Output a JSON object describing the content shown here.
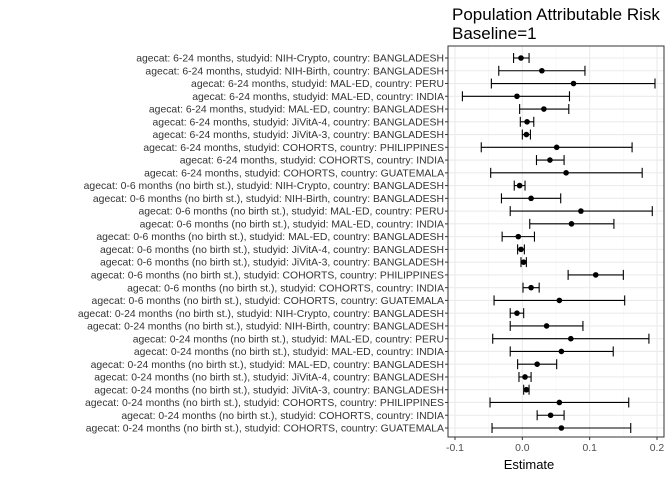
{
  "chart_data": {
    "type": "forest",
    "title": "Population Attributable Risk",
    "subtitle": "Baseline=1",
    "xlabel": "Estimate",
    "ylabel": "",
    "xlim": [
      -0.1,
      0.2
    ],
    "xticks": [
      -0.1,
      0.0,
      0.1,
      0.2
    ],
    "xtick_labels": [
      "-0.1",
      "0.0",
      "0.1",
      "0.2"
    ],
    "grid": true,
    "legend": "none",
    "rows": [
      {
        "label": "agecat: 6-24 months, studyid: NIH-Crypto, country: BANGLADESH",
        "est": -0.002,
        "lo": -0.013,
        "hi": 0.01
      },
      {
        "label": "agecat: 6-24 months, studyid: NIH-Birth, country: BANGLADESH",
        "est": 0.029,
        "lo": -0.035,
        "hi": 0.093
      },
      {
        "label": "agecat: 6-24 months, studyid: MAL-ED, country: PERU",
        "est": 0.076,
        "lo": -0.046,
        "hi": 0.197
      },
      {
        "label": "agecat: 6-24 months, studyid: MAL-ED, country: INDIA",
        "est": -0.008,
        "lo": -0.089,
        "hi": 0.07
      },
      {
        "label": "agecat: 6-24 months, studyid: MAL-ED, country: BANGLADESH",
        "est": 0.032,
        "lo": -0.004,
        "hi": 0.069
      },
      {
        "label": "agecat: 6-24 months, studyid: JiVitA-4, country: BANGLADESH",
        "est": 0.007,
        "lo": -0.003,
        "hi": 0.017
      },
      {
        "label": "agecat: 6-24 months, studyid: JiVitA-3, country: BANGLADESH",
        "est": 0.006,
        "lo": 0.0,
        "hi": 0.012
      },
      {
        "label": "agecat: 6-24 months, studyid: COHORTS, country: PHILIPPINES",
        "est": 0.051,
        "lo": -0.061,
        "hi": 0.163
      },
      {
        "label": "agecat: 6-24 months, studyid: COHORTS, country: INDIA",
        "est": 0.041,
        "lo": 0.021,
        "hi": 0.062
      },
      {
        "label": "agecat: 6-24 months, studyid: COHORTS, country: GUATEMALA",
        "est": 0.065,
        "lo": -0.047,
        "hi": 0.178
      },
      {
        "label": "agecat: 0-6 months (no birth st.), studyid: NIH-Crypto, country: BANGLADESH",
        "est": -0.004,
        "lo": -0.012,
        "hi": 0.004
      },
      {
        "label": "agecat: 0-6 months (no birth st.), studyid: NIH-Birth, country: BANGLADESH",
        "est": 0.013,
        "lo": -0.031,
        "hi": 0.057
      },
      {
        "label": "agecat: 0-6 months (no birth st.), studyid: MAL-ED, country: PERU",
        "est": 0.087,
        "lo": -0.018,
        "hi": 0.193
      },
      {
        "label": "agecat: 0-6 months (no birth st.), studyid: MAL-ED, country: INDIA",
        "est": 0.073,
        "lo": 0.011,
        "hi": 0.136
      },
      {
        "label": "agecat: 0-6 months (no birth st.), studyid: MAL-ED, country: BANGLADESH",
        "est": -0.006,
        "lo": -0.03,
        "hi": 0.018
      },
      {
        "label": "agecat: 0-6 months (no birth st.), studyid: JiVitA-4, country: BANGLADESH",
        "est": -0.002,
        "lo": -0.007,
        "hi": 0.003
      },
      {
        "label": "agecat: 0-6 months (no birth st.), studyid: JiVitA-3, country: BANGLADESH",
        "est": 0.002,
        "lo": -0.002,
        "hi": 0.006
      },
      {
        "label": "agecat: 0-6 months (no birth st.), studyid: COHORTS, country: PHILIPPINES",
        "est": 0.109,
        "lo": 0.068,
        "hi": 0.15
      },
      {
        "label": "agecat: 0-6 months (no birth st.), studyid: COHORTS, country: INDIA",
        "est": 0.013,
        "lo": 0.001,
        "hi": 0.025
      },
      {
        "label": "agecat: 0-6 months (no birth st.), studyid: COHORTS, country: GUATEMALA",
        "est": 0.055,
        "lo": -0.042,
        "hi": 0.152
      },
      {
        "label": "agecat: 0-24 months (no birth st.), studyid: NIH-Crypto, country: BANGLADESH",
        "est": -0.008,
        "lo": -0.018,
        "hi": 0.002
      },
      {
        "label": "agecat: 0-24 months (no birth st.), studyid: NIH-Birth, country: BANGLADESH",
        "est": 0.036,
        "lo": -0.018,
        "hi": 0.09
      },
      {
        "label": "agecat: 0-24 months (no birth st.), studyid: MAL-ED, country: PERU",
        "est": 0.072,
        "lo": -0.044,
        "hi": 0.188
      },
      {
        "label": "agecat: 0-24 months (no birth st.), studyid: MAL-ED, country: INDIA",
        "est": 0.058,
        "lo": -0.018,
        "hi": 0.135
      },
      {
        "label": "agecat: 0-24 months (no birth st.), studyid: MAL-ED, country: BANGLADESH",
        "est": 0.022,
        "lo": -0.007,
        "hi": 0.051
      },
      {
        "label": "agecat: 0-24 months (no birth st.), studyid: JiVitA-4, country: BANGLADESH",
        "est": 0.004,
        "lo": -0.005,
        "hi": 0.013
      },
      {
        "label": "agecat: 0-24 months (no birth st.), studyid: JiVitA-3, country: BANGLADESH",
        "est": 0.006,
        "lo": 0.002,
        "hi": 0.01
      },
      {
        "label": "agecat: 0-24 months (no birth st.), studyid: COHORTS, country: PHILIPPINES",
        "est": 0.055,
        "lo": -0.048,
        "hi": 0.158
      },
      {
        "label": "agecat: 0-24 months (no birth st.), studyid: COHORTS, country: INDIA",
        "est": 0.042,
        "lo": 0.022,
        "hi": 0.062
      },
      {
        "label": "agecat: 0-24 months (no birth st.), studyid: COHORTS, country: GUATEMALA",
        "est": 0.058,
        "lo": -0.045,
        "hi": 0.161
      }
    ],
    "colors": {
      "panel_border": "#333333",
      "grid_major": "#ebebeb",
      "grid_minor": "#f5f5f5",
      "mark": "#000000"
    }
  }
}
